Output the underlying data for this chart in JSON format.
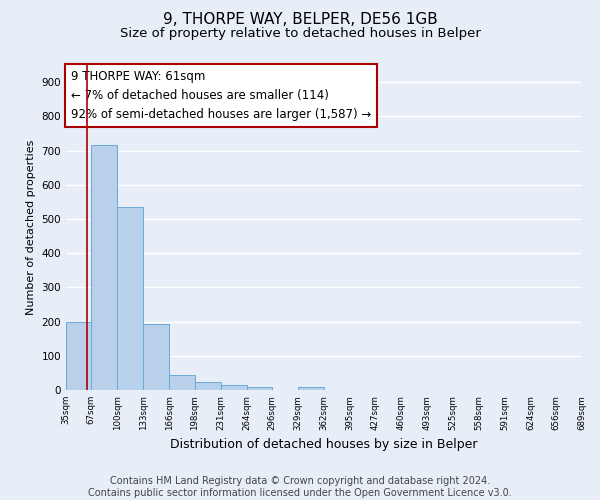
{
  "title": "9, THORPE WAY, BELPER, DE56 1GB",
  "subtitle": "Size of property relative to detached houses in Belper",
  "xlabel": "Distribution of detached houses by size in Belper",
  "ylabel": "Number of detached properties",
  "bar_edges": [
    35,
    67,
    100,
    133,
    166,
    198,
    231,
    264,
    296,
    329,
    362,
    395,
    427,
    460,
    493,
    525,
    558,
    591,
    624,
    656,
    689
  ],
  "bar_heights": [
    200,
    715,
    535,
    193,
    45,
    22,
    15,
    10,
    0,
    8,
    0,
    0,
    0,
    0,
    0,
    0,
    0,
    0,
    0,
    0
  ],
  "bar_color": "#b8d0ea",
  "bar_edge_color": "#6aaad4",
  "property_line_x": 61,
  "property_line_color": "#aa0000",
  "annotation_line1": "9 THORPE WAY: 61sqm",
  "annotation_line2": "← 7% of detached houses are smaller (114)",
  "annotation_line3": "92% of semi-detached houses are larger (1,587) →",
  "annotation_box_edge_color": "#aa0000",
  "annotation_box_face_color": "#ffffff",
  "annotation_text_fontsize": 8.5,
  "ylim": [
    0,
    950
  ],
  "yticks": [
    0,
    100,
    200,
    300,
    400,
    500,
    600,
    700,
    800,
    900
  ],
  "x_tick_labels": [
    "35sqm",
    "67sqm",
    "100sqm",
    "133sqm",
    "166sqm",
    "198sqm",
    "231sqm",
    "264sqm",
    "296sqm",
    "329sqm",
    "362sqm",
    "395sqm",
    "427sqm",
    "460sqm",
    "493sqm",
    "525sqm",
    "558sqm",
    "591sqm",
    "624sqm",
    "656sqm",
    "689sqm"
  ],
  "background_color": "#e8eef8",
  "grid_color": "#ffffff",
  "footer_text": "Contains HM Land Registry data © Crown copyright and database right 2024.\nContains public sector information licensed under the Open Government Licence v3.0.",
  "title_fontsize": 11,
  "subtitle_fontsize": 9.5,
  "xlabel_fontsize": 9,
  "ylabel_fontsize": 8,
  "footer_fontsize": 7
}
